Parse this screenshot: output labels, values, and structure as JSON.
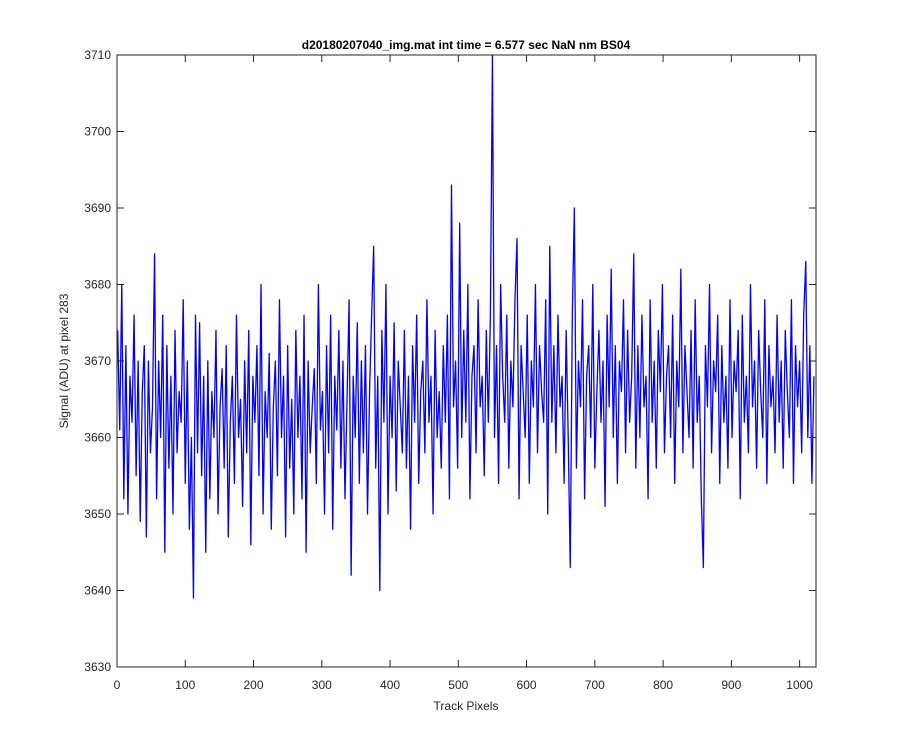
{
  "chart_data": {
    "type": "line",
    "title": "d20180207040_img.mat int time = 6.577 sec  NaN nm BS04",
    "x_label": "Track Pixels",
    "y_label": "Signal (ADU) at pixel 283",
    "color": "#0000ff",
    "xlim": [
      0,
      1024
    ],
    "ylim": [
      3630,
      3710
    ],
    "xticks": [
      0,
      100,
      200,
      300,
      400,
      500,
      600,
      700,
      800,
      900,
      1000
    ],
    "yticks": [
      3630,
      3640,
      3650,
      3660,
      3670,
      3680,
      3690,
      3700,
      3710
    ],
    "x": [
      1,
      4,
      7,
      10,
      13,
      16,
      19,
      22,
      25,
      28,
      31,
      34,
      37,
      40,
      43,
      46,
      49,
      52,
      55,
      58,
      61,
      64,
      67,
      70,
      73,
      76,
      79,
      82,
      85,
      88,
      91,
      94,
      97,
      100,
      103,
      106,
      109,
      112,
      115,
      118,
      121,
      124,
      127,
      130,
      133,
      136,
      139,
      142,
      145,
      148,
      151,
      154,
      157,
      160,
      163,
      166,
      169,
      172,
      175,
      178,
      181,
      184,
      187,
      190,
      193,
      196,
      199,
      202,
      205,
      208,
      211,
      214,
      217,
      220,
      223,
      226,
      229,
      232,
      235,
      238,
      241,
      244,
      247,
      250,
      253,
      256,
      259,
      262,
      265,
      268,
      271,
      274,
      277,
      280,
      283,
      286,
      289,
      292,
      295,
      298,
      301,
      304,
      307,
      310,
      313,
      316,
      319,
      322,
      325,
      328,
      331,
      334,
      337,
      340,
      343,
      346,
      349,
      352,
      355,
      358,
      361,
      364,
      367,
      370,
      373,
      376,
      379,
      382,
      385,
      388,
      391,
      394,
      397,
      400,
      403,
      406,
      409,
      412,
      415,
      418,
      421,
      424,
      427,
      430,
      433,
      436,
      439,
      442,
      445,
      448,
      451,
      454,
      457,
      460,
      463,
      466,
      469,
      472,
      475,
      478,
      481,
      484,
      487,
      490,
      493,
      496,
      499,
      502,
      505,
      508,
      511,
      514,
      517,
      520,
      523,
      526,
      529,
      532,
      535,
      538,
      541,
      544,
      547,
      550,
      553,
      556,
      559,
      562,
      565,
      568,
      571,
      574,
      577,
      580,
      583,
      586,
      589,
      592,
      595,
      598,
      601,
      604,
      607,
      610,
      613,
      616,
      619,
      622,
      625,
      628,
      631,
      634,
      637,
      640,
      643,
      646,
      649,
      652,
      655,
      658,
      661,
      664,
      667,
      670,
      673,
      676,
      679,
      682,
      685,
      688,
      691,
      694,
      697,
      700,
      703,
      706,
      709,
      712,
      715,
      718,
      721,
      724,
      727,
      730,
      733,
      736,
      739,
      742,
      745,
      748,
      751,
      754,
      757,
      760,
      763,
      766,
      769,
      772,
      775,
      778,
      781,
      784,
      787,
      790,
      793,
      796,
      799,
      802,
      805,
      808,
      811,
      814,
      817,
      820,
      823,
      826,
      829,
      832,
      835,
      838,
      841,
      844,
      847,
      850,
      853,
      856,
      859,
      862,
      865,
      868,
      871,
      874,
      877,
      880,
      883,
      886,
      889,
      892,
      895,
      898,
      901,
      904,
      907,
      910,
      913,
      916,
      919,
      922,
      925,
      928,
      931,
      934,
      937,
      940,
      943,
      946,
      949,
      952,
      955,
      958,
      961,
      964,
      967,
      970,
      973,
      976,
      979,
      982,
      985,
      988,
      991,
      994,
      997,
      1000,
      1003,
      1006,
      1009,
      1012,
      1015,
      1018,
      1021
    ],
    "values": [
      3674,
      3661,
      3680,
      3652,
      3672,
      3650,
      3668,
      3662,
      3676,
      3655,
      3670,
      3649,
      3666,
      3672,
      3647,
      3670,
      3658,
      3664,
      3684,
      3652,
      3670,
      3660,
      3676,
      3645,
      3672,
      3656,
      3668,
      3650,
      3674,
      3658,
      3666,
      3662,
      3678,
      3654,
      3670,
      3648,
      3660,
      3639,
      3676,
      3658,
      3675,
      3655,
      3668,
      3645,
      3670,
      3652,
      3666,
      3660,
      3674,
      3650,
      3664,
      3669,
      3656,
      3672,
      3647,
      3662,
      3668,
      3654,
      3676,
      3660,
      3665,
      3651,
      3670,
      3658,
      3674,
      3646,
      3668,
      3662,
      3672,
      3655,
      3680,
      3650,
      3666,
      3660,
      3671,
      3648,
      3664,
      3670,
      3655,
      3678,
      3660,
      3668,
      3647,
      3672,
      3656,
      3665,
      3650,
      3674,
      3660,
      3668,
      3652,
      3676,
      3645,
      3670,
      3658,
      3664,
      3669,
      3654,
      3680,
      3661,
      3666,
      3650,
      3672,
      3658,
      3676,
      3648,
      3668,
      3661,
      3674,
      3656,
      3670,
      3652,
      3665,
      3678,
      3642,
      3668,
      3660,
      3675,
      3654,
      3670,
      3658,
      3672,
      3650,
      3666,
      3676,
      3685,
      3656,
      3668,
      3640,
      3674,
      3662,
      3680,
      3650,
      3668,
      3660,
      3675,
      3653,
      3670,
      3664,
      3658,
      3674,
      3656,
      3668,
      3648,
      3672,
      3662,
      3676,
      3654,
      3666,
      3670,
      3658,
      3678,
      3662,
      3668,
      3650,
      3674,
      3660,
      3666,
      3656,
      3672,
      3662,
      3676,
      3652,
      3693,
      3664,
      3670,
      3656,
      3688,
      3660,
      3674,
      3662,
      3680,
      3652,
      3668,
      3672,
      3658,
      3678,
      3664,
      3668,
      3655,
      3674,
      3662,
      3676,
      3710,
      3660,
      3672,
      3654,
      3680,
      3668,
      3662,
      3676,
      3656,
      3670,
      3664,
      3678,
      3686,
      3652,
      3672,
      3666,
      3660,
      3676,
      3654,
      3670,
      3664,
      3680,
      3658,
      3672,
      3666,
      3662,
      3678,
      3650,
      3685,
      3662,
      3672,
      3658,
      3676,
      3664,
      3668,
      3654,
      3674,
      3660,
      3643,
      3676,
      3690,
      3656,
      3670,
      3664,
      3678,
      3652,
      3668,
      3672,
      3660,
      3680,
      3656,
      3666,
      3674,
      3662,
      3670,
      3651,
      3676,
      3664,
      3682,
      3660,
      3672,
      3654,
      3670,
      3666,
      3678,
      3658,
      3674,
      3662,
      3668,
      3684,
      3656,
      3672,
      3660,
      3676,
      3664,
      3668,
      3652,
      3678,
      3662,
      3670,
      3656,
      3674,
      3666,
      3680,
      3658,
      3668,
      3672,
      3660,
      3676,
      3654,
      3670,
      3664,
      3682,
      3658,
      3672,
      3666,
      3660,
      3674,
      3656,
      3678,
      3662,
      3668,
      3652,
      3643,
      3672,
      3664,
      3680,
      3658,
      3670,
      3666,
      3676,
      3654,
      3672,
      3662,
      3668,
      3656,
      3678,
      3660,
      3670,
      3666,
      3674,
      3652,
      3676,
      3662,
      3668,
      3658,
      3680,
      3664,
      3670,
      3656,
      3674,
      3666,
      3660,
      3678,
      3654,
      3672,
      3664,
      3668,
      3658,
      3676,
      3662,
      3670,
      3656,
      3674,
      3666,
      3660,
      3678,
      3654,
      3672,
      3664,
      3670,
      3658,
      3676,
      3683,
      3660,
      3672,
      3654,
      3668
    ]
  }
}
